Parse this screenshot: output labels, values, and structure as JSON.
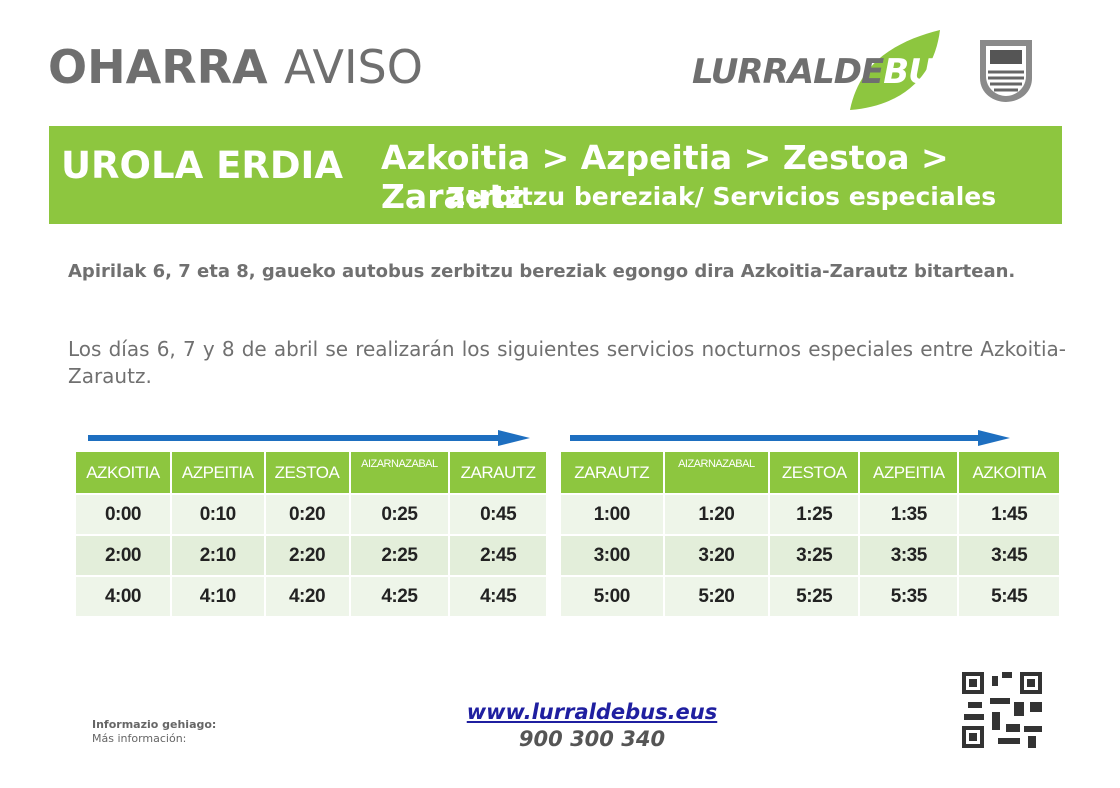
{
  "header": {
    "title_eu": "OHARRA",
    "title_es": "AVISO",
    "logo": [
      "LURRALDE",
      "BUS"
    ]
  },
  "banner": {
    "region": "UROLA ERDIA",
    "route": "Azkoitia > Azpeitia > Zestoa > Zarautz",
    "subtitle": "Zerbitzu bereziak/ Servicios especiales"
  },
  "intro": {
    "eu": "Apirilak 6, 7 eta 8, gaueko autobus zerbitzu bereziak egongo dira Azkoitia-Zarautz bitartean.",
    "es": "Los días 6, 7 y 8 de abril se realizarán los siguientes servicios nocturnos especiales entre Azkoitia-Zarautz."
  },
  "tables": [
    {
      "headers": [
        "AZKOITIA",
        "AZPEITIA",
        "ZESTOA",
        "AIZARNAZABAL",
        "ZARAUTZ"
      ],
      "rows": [
        [
          "0:00",
          "0:10",
          "0:20",
          "0:25",
          "0:45"
        ],
        [
          "2:00",
          "2:10",
          "2:20",
          "2:25",
          "2:45"
        ],
        [
          "4:00",
          "4:10",
          "4:20",
          "4:25",
          "4:45"
        ]
      ]
    },
    {
      "headers": [
        "ZARAUTZ",
        "AIZARNAZABAL",
        "ZESTOA",
        "AZPEITIA",
        "AZKOITIA"
      ],
      "rows": [
        [
          "1:00",
          "1:20",
          "1:25",
          "1:35",
          "1:45"
        ],
        [
          "3:00",
          "3:20",
          "3:25",
          "3:35",
          "3:45"
        ],
        [
          "5:00",
          "5:20",
          "5:25",
          "5:35",
          "5:45"
        ]
      ]
    }
  ],
  "footer": {
    "more_info_eu": "Informazio gehiago:",
    "more_info_es": "Más información:",
    "url": "www.lurraldebus.eus",
    "phone": "900 300 340"
  }
}
